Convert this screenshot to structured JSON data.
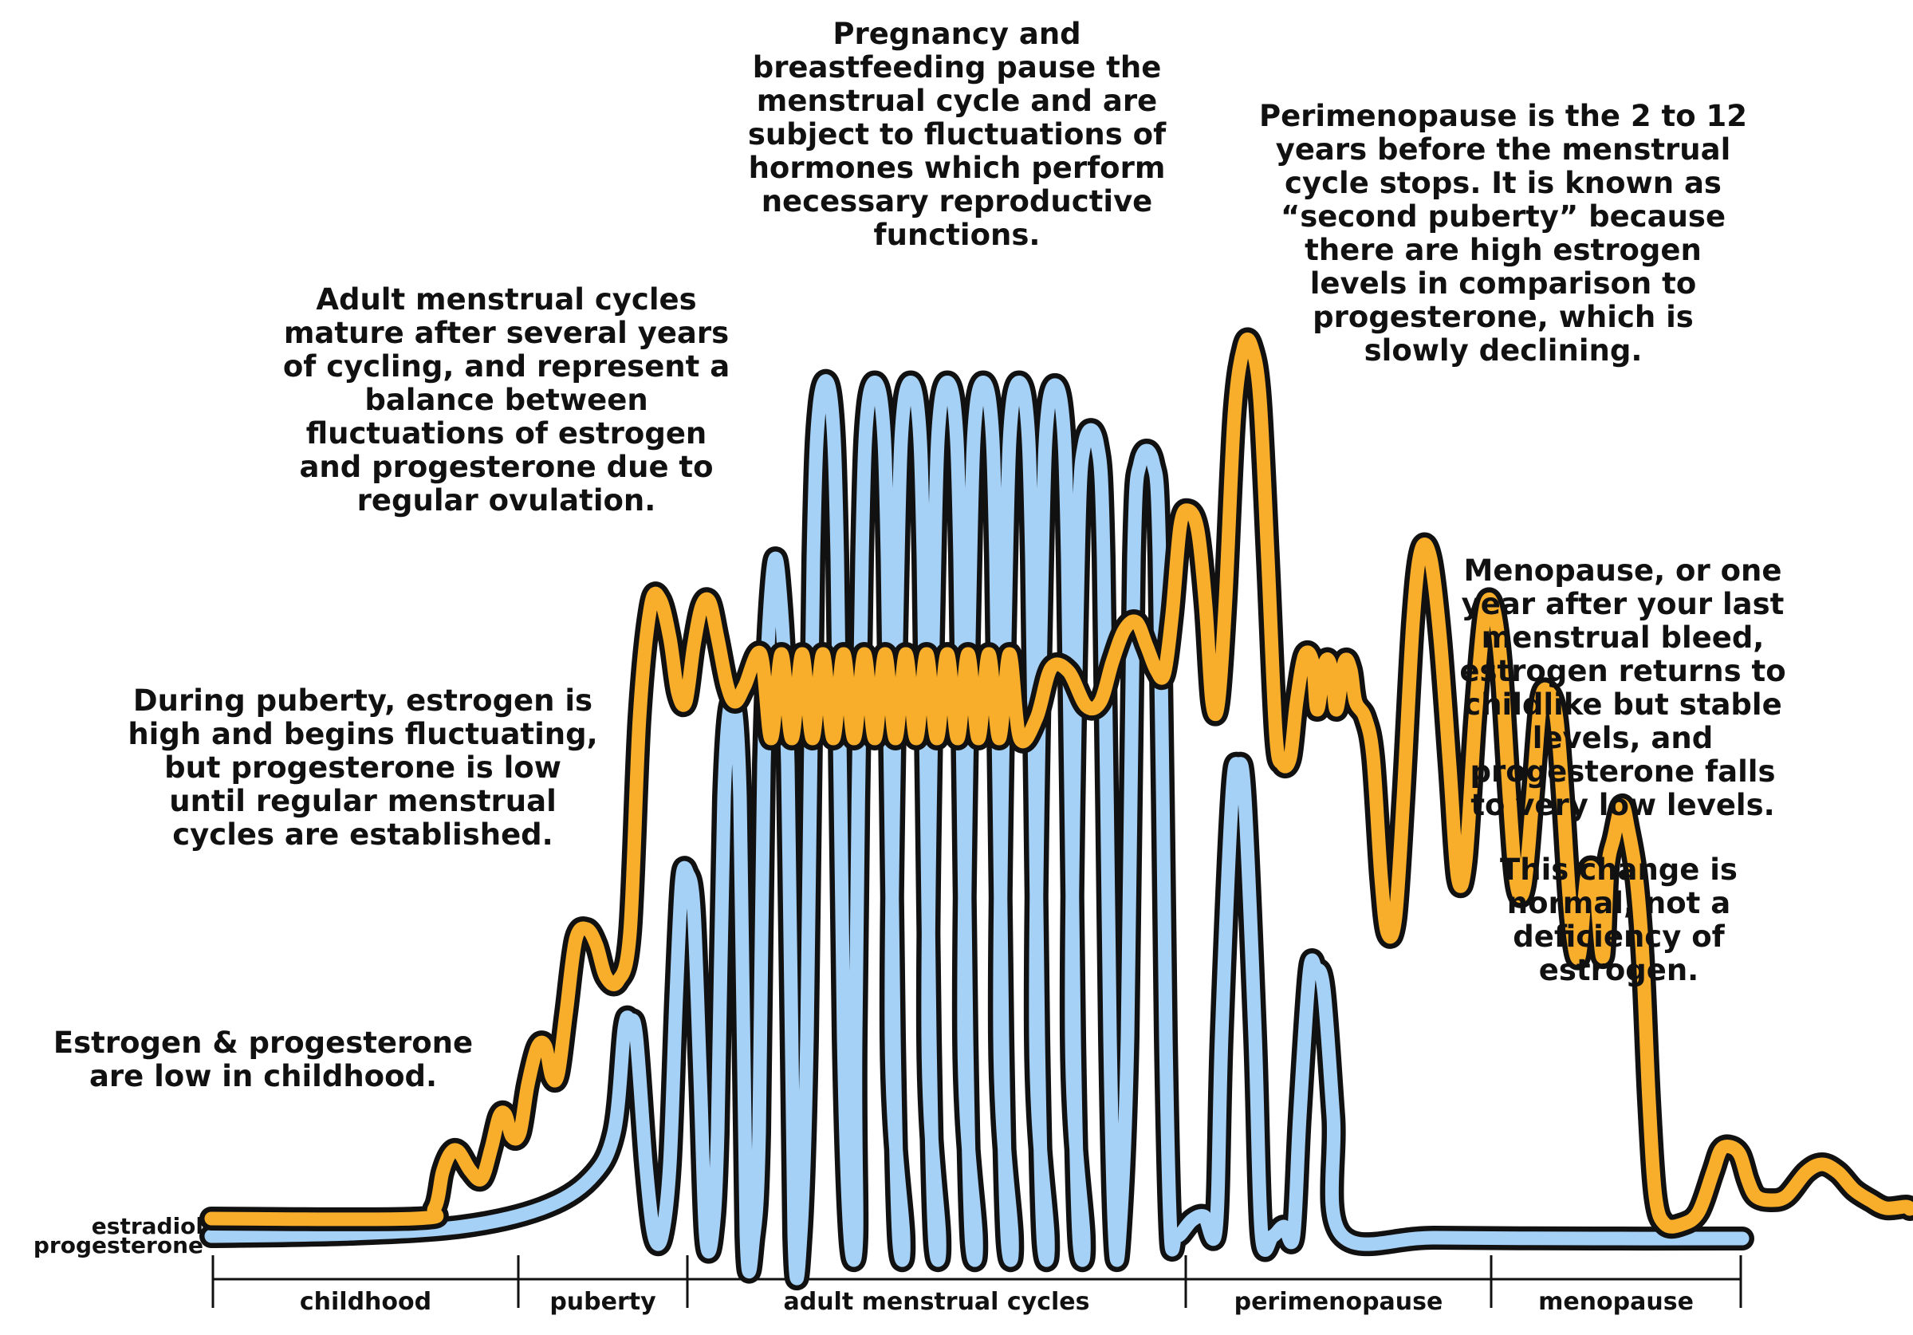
{
  "annotations": {
    "childhood": "Estrogen & progesterone are low in childhood.",
    "puberty": "During puberty, estrogen is high and begins fluctuating, but progesterone is low until regular menstrual cycles are established.",
    "adult": "Adult menstrual cycles mature after several years of cycling, and represent a balance between fluctuations of estrogen and progesterone due to regular ovulation.",
    "pregnancy": "Pregnancy and breastfeeding pause the menstrual cycle and are subject to fluctuations of hormones which perform necessary reproductive functions.",
    "perimenopause": "Perimenopause is the 2 to 12 years before the menstrual cycle stops. It is known as “second puberty” because there are high estrogen levels in comparison to progesterone, which is slowly declining.",
    "menopause": "Menopause, or one year after your last menstrual bleed, estrogen returns to childlike but stable levels, and progesterone falls to very low levels.",
    "normal": "This change is normal, not a deficiency of estrogen."
  },
  "series_labels": {
    "estradiol": "estradiol",
    "progesterone": "progesterone"
  },
  "phases": [
    "childhood",
    "puberty",
    "adult menstrual cycles",
    "perimenopause",
    "menopause"
  ],
  "colors": {
    "estradiol": "#F9AE2B",
    "progesterone": "#A6D1F7",
    "outline": "#111111"
  }
}
